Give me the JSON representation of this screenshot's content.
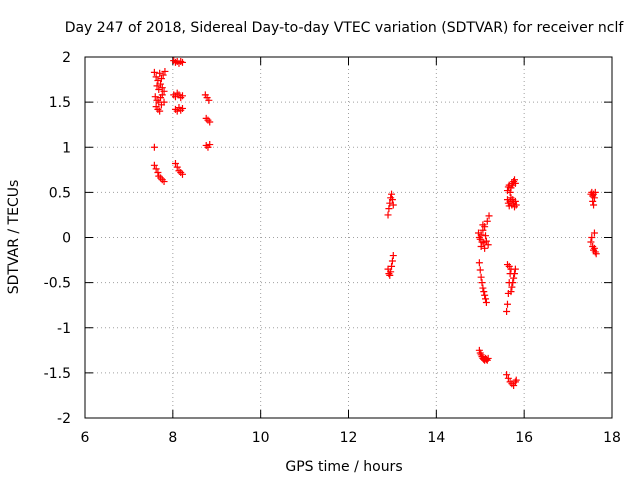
{
  "chart_data": {
    "type": "scatter",
    "title": "Day 247 of 2018, Sidereal Day-to-day VTEC variation (SDTVAR) for receiver nclf",
    "xlabel": "GPS time / hours",
    "ylabel": "SDTVAR / TECUs",
    "xlim": [
      6,
      18
    ],
    "ylim": [
      -2,
      2
    ],
    "xticks": [
      6,
      8,
      10,
      12,
      14,
      16,
      18
    ],
    "yticks": [
      -2,
      -1.5,
      -1,
      -0.5,
      0,
      0.5,
      1,
      1.5,
      2
    ],
    "xtick_labels": [
      "6",
      "8",
      "10",
      "12",
      "14",
      "16",
      "18"
    ],
    "ytick_labels": [
      "-2",
      "-1.5",
      "-1",
      "-0.5",
      "0",
      "0.5",
      "1",
      "1.5",
      "2"
    ],
    "grid": true,
    "marker": "plus",
    "color": "#ff0000",
    "series": [
      {
        "name": "SDTVAR",
        "points": [
          [
            7.58,
            1.83
          ],
          [
            7.62,
            1.78
          ],
          [
            7.66,
            1.74
          ],
          [
            7.7,
            1.82
          ],
          [
            7.74,
            1.76
          ],
          [
            7.78,
            1.8
          ],
          [
            7.82,
            1.84
          ],
          [
            7.64,
            1.68
          ],
          [
            7.68,
            1.64
          ],
          [
            7.72,
            1.7
          ],
          [
            7.76,
            1.66
          ],
          [
            7.8,
            1.62
          ],
          [
            7.6,
            1.56
          ],
          [
            7.64,
            1.52
          ],
          [
            7.68,
            1.5
          ],
          [
            7.72,
            1.55
          ],
          [
            7.76,
            1.58
          ],
          [
            7.8,
            1.5
          ],
          [
            7.62,
            1.45
          ],
          [
            7.66,
            1.42
          ],
          [
            7.7,
            1.4
          ],
          [
            7.74,
            1.47
          ],
          [
            7.58,
            1.0
          ],
          [
            7.58,
            0.8
          ],
          [
            7.62,
            0.76
          ],
          [
            7.66,
            0.72
          ],
          [
            7.68,
            0.68
          ],
          [
            7.72,
            0.66
          ],
          [
            7.76,
            0.64
          ],
          [
            7.8,
            0.62
          ],
          [
            8.02,
            1.96
          ],
          [
            8.06,
            1.94
          ],
          [
            8.1,
            1.95
          ],
          [
            8.14,
            1.93
          ],
          [
            8.18,
            1.95
          ],
          [
            8.22,
            1.94
          ],
          [
            8.02,
            1.58
          ],
          [
            8.06,
            1.56
          ],
          [
            8.1,
            1.6
          ],
          [
            8.14,
            1.58
          ],
          [
            8.18,
            1.55
          ],
          [
            8.22,
            1.57
          ],
          [
            8.06,
            1.42
          ],
          [
            8.1,
            1.4
          ],
          [
            8.14,
            1.44
          ],
          [
            8.18,
            1.41
          ],
          [
            8.22,
            1.43
          ],
          [
            8.06,
            0.82
          ],
          [
            8.1,
            0.78
          ],
          [
            8.14,
            0.74
          ],
          [
            8.18,
            0.72
          ],
          [
            8.22,
            0.7
          ],
          [
            8.74,
            1.58
          ],
          [
            8.78,
            1.55
          ],
          [
            8.82,
            1.52
          ],
          [
            8.76,
            1.32
          ],
          [
            8.8,
            1.3
          ],
          [
            8.84,
            1.28
          ],
          [
            8.76,
            1.02
          ],
          [
            8.8,
            1.0
          ],
          [
            8.84,
            1.03
          ],
          [
            12.9,
            0.25
          ],
          [
            12.92,
            0.32
          ],
          [
            12.94,
            0.38
          ],
          [
            12.96,
            0.44
          ],
          [
            12.98,
            0.48
          ],
          [
            13.0,
            0.42
          ],
          [
            13.02,
            0.36
          ],
          [
            12.9,
            -0.35
          ],
          [
            12.92,
            -0.4
          ],
          [
            12.94,
            -0.42
          ],
          [
            12.96,
            -0.38
          ],
          [
            12.98,
            -0.32
          ],
          [
            13.0,
            -0.26
          ],
          [
            13.02,
            -0.2
          ],
          [
            14.96,
            0.05
          ],
          [
            14.98,
            0.0
          ],
          [
            15.0,
            -0.02
          ],
          [
            15.02,
            0.03
          ],
          [
            15.04,
            -0.05
          ],
          [
            15.06,
            0.08
          ],
          [
            15.08,
            -0.06
          ],
          [
            15.1,
            0.12
          ],
          [
            15.12,
            0.02
          ],
          [
            15.14,
            -0.04
          ],
          [
            15.16,
            0.18
          ],
          [
            15.18,
            -0.08
          ],
          [
            15.2,
            0.24
          ],
          [
            15.02,
            -0.1
          ],
          [
            15.06,
            0.14
          ],
          [
            15.1,
            -0.12
          ],
          [
            14.98,
            -0.28
          ],
          [
            15.0,
            -0.36
          ],
          [
            15.02,
            -0.44
          ],
          [
            15.04,
            -0.5
          ],
          [
            15.06,
            -0.56
          ],
          [
            15.08,
            -0.6
          ],
          [
            15.1,
            -0.64
          ],
          [
            15.12,
            -0.68
          ],
          [
            15.14,
            -0.72
          ],
          [
            14.98,
            -1.25
          ],
          [
            15.0,
            -1.28
          ],
          [
            15.02,
            -1.3
          ],
          [
            15.04,
            -1.32
          ],
          [
            15.06,
            -1.34
          ],
          [
            15.08,
            -1.35
          ],
          [
            15.1,
            -1.36
          ],
          [
            15.12,
            -1.34
          ],
          [
            15.14,
            -1.35
          ],
          [
            15.16,
            -1.36
          ],
          [
            15.18,
            -1.34
          ],
          [
            15.62,
            0.52
          ],
          [
            15.64,
            0.56
          ],
          [
            15.66,
            0.58
          ],
          [
            15.68,
            0.5
          ],
          [
            15.7,
            0.55
          ],
          [
            15.72,
            0.6
          ],
          [
            15.74,
            0.58
          ],
          [
            15.76,
            0.62
          ],
          [
            15.78,
            0.64
          ],
          [
            15.8,
            0.6
          ],
          [
            15.62,
            0.42
          ],
          [
            15.64,
            0.38
          ],
          [
            15.66,
            0.35
          ],
          [
            15.68,
            0.4
          ],
          [
            15.7,
            0.44
          ],
          [
            15.72,
            0.36
          ],
          [
            15.74,
            0.42
          ],
          [
            15.76,
            0.38
          ],
          [
            15.78,
            0.34
          ],
          [
            15.8,
            0.4
          ],
          [
            15.82,
            0.36
          ],
          [
            15.6,
            -0.82
          ],
          [
            15.62,
            -0.74
          ],
          [
            15.64,
            -0.62
          ],
          [
            15.66,
            -0.5
          ],
          [
            15.68,
            -0.4
          ],
          [
            15.62,
            -0.3
          ],
          [
            15.66,
            -0.32
          ],
          [
            15.7,
            -0.35
          ],
          [
            15.7,
            -0.6
          ],
          [
            15.72,
            -0.55
          ],
          [
            15.74,
            -0.5
          ],
          [
            15.76,
            -0.45
          ],
          [
            15.78,
            -0.4
          ],
          [
            15.8,
            -0.35
          ],
          [
            15.6,
            -1.52
          ],
          [
            15.64,
            -1.56
          ],
          [
            15.68,
            -1.6
          ],
          [
            15.72,
            -1.62
          ],
          [
            15.76,
            -1.64
          ],
          [
            15.8,
            -1.6
          ],
          [
            15.82,
            -1.58
          ],
          [
            17.52,
            0.48
          ],
          [
            17.54,
            0.5
          ],
          [
            17.56,
            0.46
          ],
          [
            17.58,
            0.48
          ],
          [
            17.6,
            0.44
          ],
          [
            17.62,
            0.5
          ],
          [
            17.56,
            0.4
          ],
          [
            17.58,
            0.36
          ],
          [
            17.52,
            -0.05
          ],
          [
            17.54,
            0.0
          ],
          [
            17.56,
            -0.1
          ],
          [
            17.58,
            -0.14
          ],
          [
            17.6,
            0.05
          ],
          [
            17.62,
            -0.16
          ],
          [
            17.64,
            -0.18
          ],
          [
            17.6,
            -0.12
          ]
        ]
      }
    ]
  }
}
